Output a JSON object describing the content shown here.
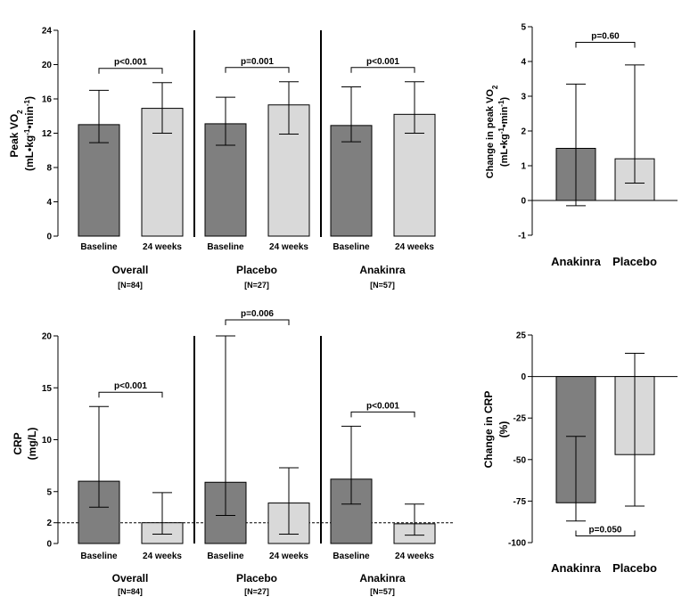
{
  "colors": {
    "dark_bar": "#7f7f7f",
    "light_bar": "#d9d9d9",
    "line": "#000000"
  },
  "chart_data": [
    {
      "id": "peak_vo2",
      "type": "bar",
      "ylabel_line1": "Peak VO",
      "ylabel_sub": "2",
      "ylabel_line2": "(mL•kg",
      "ylabel_sup1": "-1",
      "ylabel_mid": "•min",
      "ylabel_sup2": "-1",
      "ylabel_end": ")",
      "ylim": [
        0,
        24
      ],
      "yticks": [
        0,
        4,
        8,
        12,
        16,
        20,
        24
      ],
      "ytick_labels": [
        "0",
        "4",
        "8",
        "12",
        "16",
        "20",
        "24"
      ],
      "groups": [
        {
          "name": "Overall",
          "n": "[N=84]",
          "p": "p<0.001",
          "bars": [
            {
              "label": "Baseline",
              "value": 13.0,
              "err_low": 10.9,
              "err_high": 17.0,
              "color": "dark"
            },
            {
              "label": "24 weeks",
              "value": 14.9,
              "err_low": 12.0,
              "err_high": 17.9,
              "color": "light"
            }
          ]
        },
        {
          "name": "Placebo",
          "n": "[N=27]",
          "p": "p=0.001",
          "bars": [
            {
              "label": "Baseline",
              "value": 13.1,
              "err_low": 10.6,
              "err_high": 16.2,
              "color": "dark"
            },
            {
              "label": "24 weeks",
              "value": 15.3,
              "err_low": 11.9,
              "err_high": 18.0,
              "color": "light"
            }
          ]
        },
        {
          "name": "Anakinra",
          "n": "[N=57]",
          "p": "p<0.001",
          "bars": [
            {
              "label": "Baseline",
              "value": 12.9,
              "err_low": 11.0,
              "err_high": 17.4,
              "color": "dark"
            },
            {
              "label": "24 weeks",
              "value": 14.2,
              "err_low": 12.0,
              "err_high": 18.0,
              "color": "light"
            }
          ]
        }
      ]
    },
    {
      "id": "change_vo2",
      "type": "bar",
      "ylabel_line1": "Change in peak VO",
      "ylabel_sub": "2",
      "ylabel_line2": "(mL•kg",
      "ylabel_sup1": "-1",
      "ylabel_mid": "•min",
      "ylabel_sup2": "-1",
      "ylabel_end": ")",
      "ylim": [
        -1,
        5
      ],
      "yticks": [
        -1,
        0,
        1,
        2,
        3,
        4,
        5
      ],
      "ytick_labels": [
        "-1",
        "0",
        "1",
        "2",
        "3",
        "4",
        "5"
      ],
      "p": "p=0.60",
      "categories": [
        "Anakinra",
        "Placebo"
      ],
      "bars": [
        {
          "label": "Anakinra",
          "value": 1.5,
          "err_low": -0.15,
          "err_high": 3.35,
          "color": "dark"
        },
        {
          "label": "Placebo",
          "value": 1.2,
          "err_low": 0.5,
          "err_high": 3.9,
          "color": "light"
        }
      ]
    },
    {
      "id": "crp",
      "type": "bar",
      "ylabel_line1": "CRP",
      "ylabel_line2": "(mg/L)",
      "ylim": [
        0,
        20
      ],
      "yticks": [
        0,
        2,
        5,
        10,
        15,
        20
      ],
      "ytick_labels": [
        "0",
        "2",
        "5",
        "10",
        "15",
        "20"
      ],
      "reference_line": 2,
      "groups": [
        {
          "name": "Overall",
          "n": "[N=84]",
          "p": "p<0.001",
          "bars": [
            {
              "label": "Baseline",
              "value": 6.0,
              "err_low": 3.5,
              "err_high": 13.2,
              "color": "dark"
            },
            {
              "label": "24 weeks",
              "value": 2.0,
              "err_low": 0.9,
              "err_high": 4.9,
              "color": "light"
            }
          ]
        },
        {
          "name": "Placebo",
          "n": "[N=27]",
          "p": "p=0.006",
          "bars": [
            {
              "label": "Baseline",
              "value": 5.9,
              "err_low": 2.7,
              "err_high": 20.0,
              "color": "dark"
            },
            {
              "label": "24 weeks",
              "value": 3.9,
              "err_low": 0.9,
              "err_high": 7.3,
              "color": "light"
            }
          ]
        },
        {
          "name": "Anakinra",
          "n": "[N=57]",
          "p": "p<0.001",
          "bars": [
            {
              "label": "Baseline",
              "value": 6.2,
              "err_low": 3.8,
              "err_high": 11.3,
              "color": "dark"
            },
            {
              "label": "24 weeks",
              "value": 1.9,
              "err_low": 0.8,
              "err_high": 3.8,
              "color": "light"
            }
          ]
        }
      ]
    },
    {
      "id": "change_crp",
      "type": "bar",
      "ylabel_line1": "Change in CRP",
      "ylabel_line2": "(%)",
      "ylim": [
        -100,
        25
      ],
      "yticks": [
        -100,
        -75,
        -50,
        -25,
        0,
        25
      ],
      "ytick_labels": [
        "-100",
        "-75",
        "-50",
        "-25",
        "0",
        "25"
      ],
      "p": "p=0.050",
      "categories": [
        "Anakinra",
        "Placebo"
      ],
      "bars": [
        {
          "label": "Anakinra",
          "value": -76,
          "err_low": -87,
          "err_high": -36,
          "color": "dark"
        },
        {
          "label": "Placebo",
          "value": -47,
          "err_low": -78,
          "err_high": 14,
          "color": "light"
        }
      ]
    }
  ]
}
